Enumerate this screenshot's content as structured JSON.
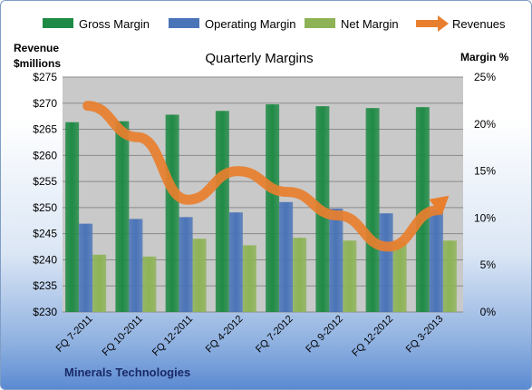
{
  "chart_data": {
    "type": "bar",
    "title": "Quarterly Margins",
    "footer": "Minerals Technologies",
    "categories": [
      "FQ 7-2011",
      "FQ 10-2011",
      "FQ 12-2011",
      "FQ 4-2012",
      "FQ 7-2012",
      "FQ 9-2012",
      "FQ 12-2012",
      "FQ 3-2013"
    ],
    "left_axis": {
      "label_line1": "Revenue",
      "label_line2": "$millions",
      "min": 230,
      "max": 275,
      "step": 5,
      "prefix": "$",
      "suffix": ""
    },
    "right_axis": {
      "label": "Margin %",
      "min": 0,
      "max": 25,
      "step": 5,
      "prefix": "",
      "suffix": "%"
    },
    "series": [
      {
        "name": "Gross Margin",
        "type": "bar",
        "axis": "right",
        "color": "#1f8a45",
        "values": [
          20.2,
          20.3,
          21.0,
          21.4,
          22.1,
          21.9,
          21.7,
          21.8
        ]
      },
      {
        "name": "Operating Margin",
        "type": "bar",
        "axis": "right",
        "color": "#4a74b8",
        "values": [
          9.4,
          9.9,
          10.1,
          10.6,
          11.7,
          11.0,
          10.5,
          10.9
        ]
      },
      {
        "name": "Net Margin",
        "type": "bar",
        "axis": "right",
        "color": "#8db356",
        "values": [
          6.1,
          5.9,
          7.8,
          7.1,
          7.9,
          7.6,
          7.5,
          7.6
        ]
      },
      {
        "name": "Revenues",
        "type": "line",
        "axis": "left",
        "color": "#e87f2e",
        "values": [
          269.5,
          263.5,
          251.5,
          257.0,
          253.0,
          248.5,
          242.5,
          249.5
        ]
      }
    ],
    "grid": true,
    "legend_position": "top"
  }
}
